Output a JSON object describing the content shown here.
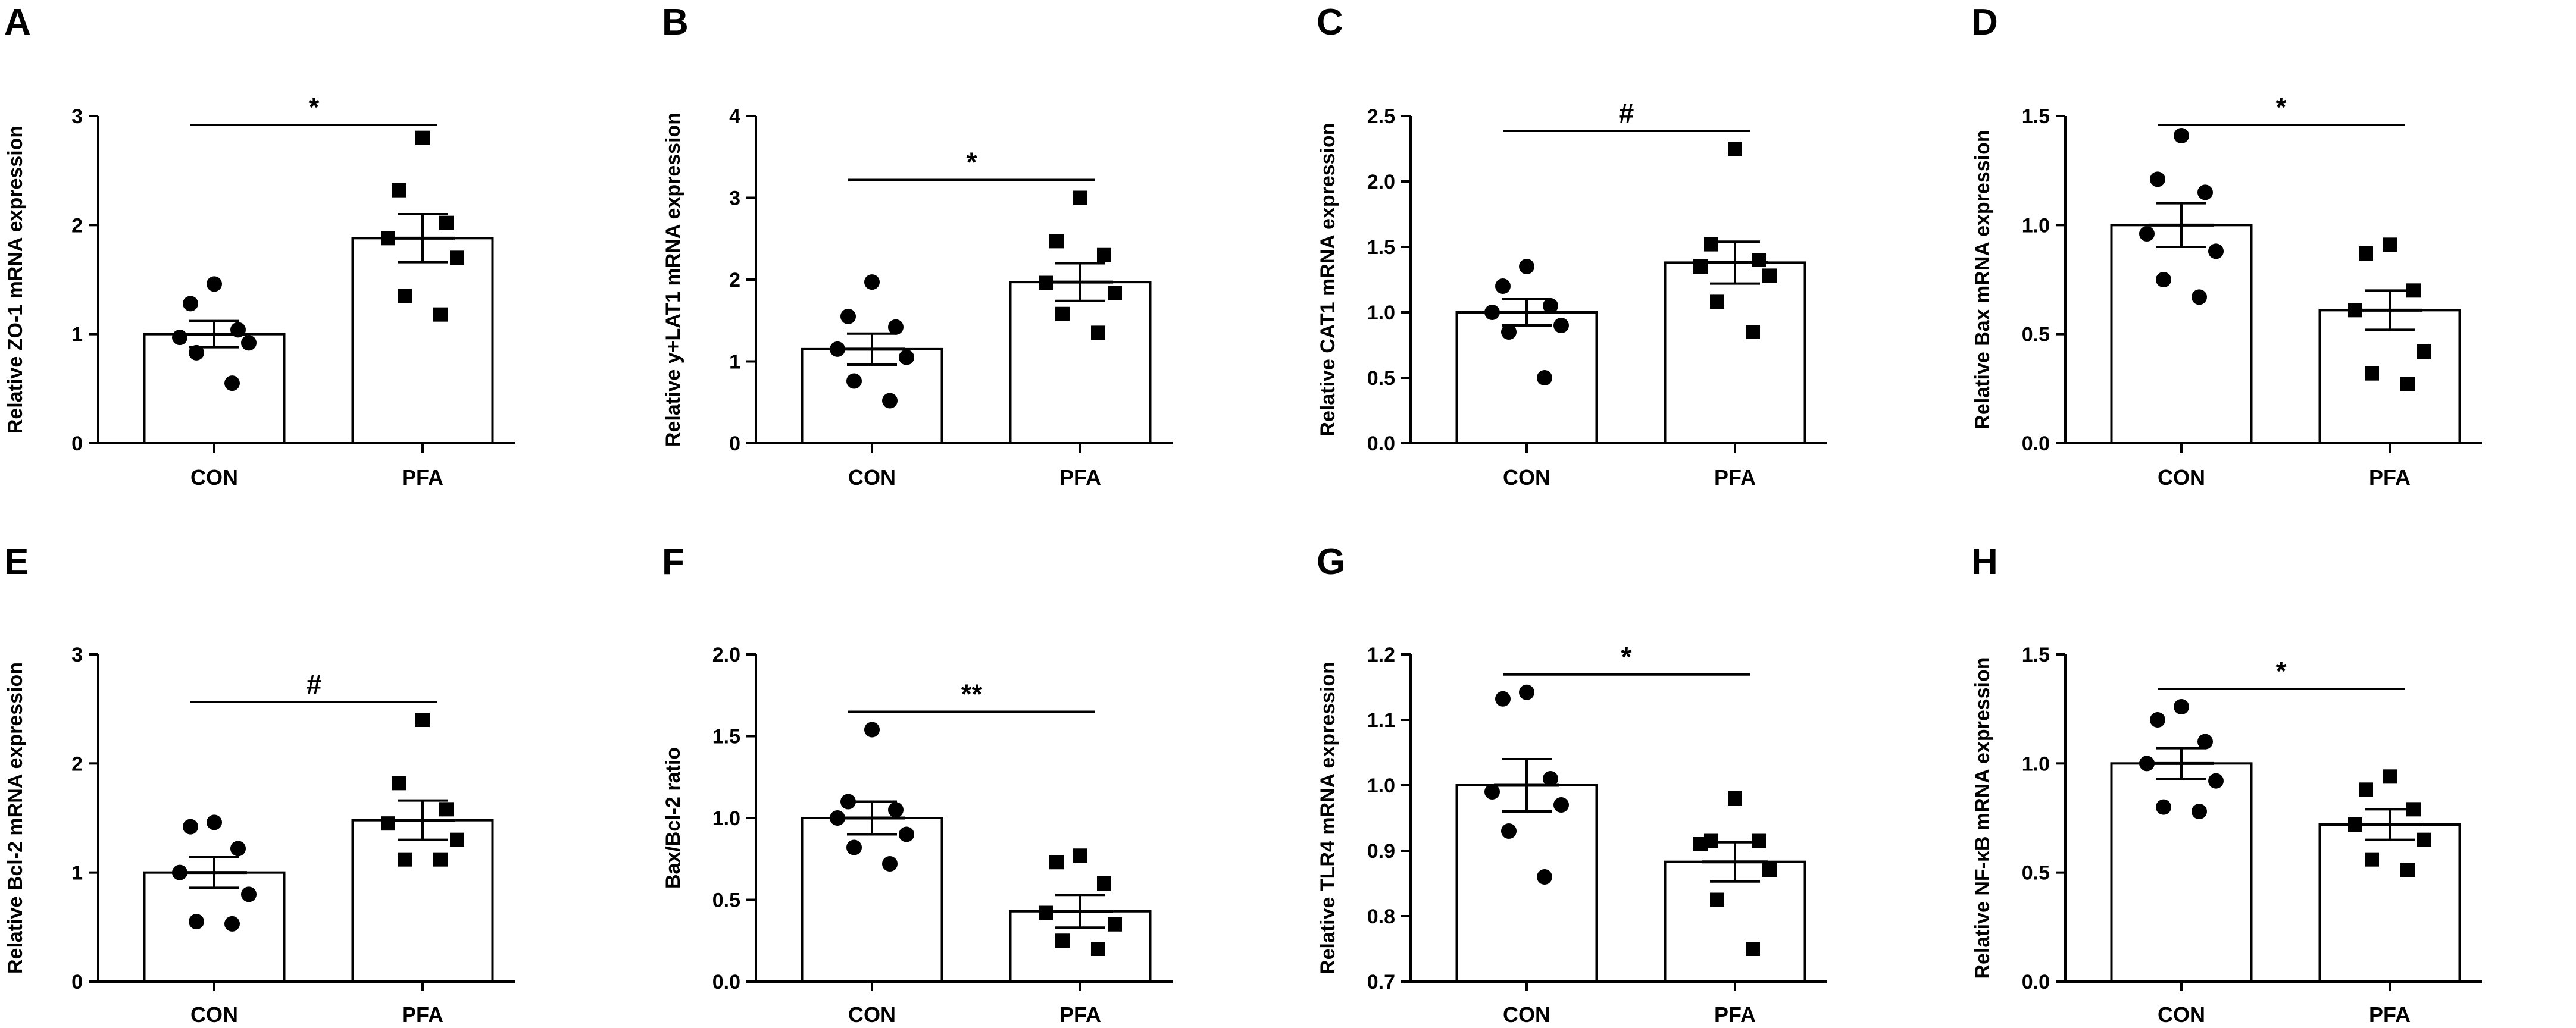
{
  "chart_data": [
    {
      "type": "bar",
      "panel": "A",
      "ylabel": "Relative ZO-1 mRNA expression",
      "ylim": [
        0,
        3
      ],
      "yticks": [
        "0",
        "1",
        "2",
        "3"
      ],
      "categories": [
        "CON",
        "PFA"
      ],
      "means": [
        1.0,
        1.88
      ],
      "sem": [
        0.12,
        0.22
      ],
      "points": [
        [
          1.46,
          1.28,
          1.04,
          0.97,
          0.92,
          0.83,
          0.55
        ],
        [
          2.8,
          2.32,
          2.02,
          1.88,
          1.7,
          1.35,
          1.18
        ]
      ],
      "significance": "*"
    },
    {
      "type": "bar",
      "panel": "B",
      "ylabel": "Relative y+LAT1 mRNA expression",
      "ylim": [
        0,
        4
      ],
      "yticks": [
        "0",
        "1",
        "2",
        "3",
        "4"
      ],
      "categories": [
        "CON",
        "PFA"
      ],
      "means": [
        1.15,
        1.97
      ],
      "sem": [
        0.19,
        0.23
      ],
      "points": [
        [
          1.97,
          1.55,
          1.42,
          1.15,
          1.05,
          0.76,
          0.52
        ],
        [
          3.0,
          2.47,
          2.3,
          1.96,
          1.84,
          1.58,
          1.35
        ]
      ],
      "significance": "*"
    },
    {
      "type": "bar",
      "panel": "C",
      "ylabel": "Relative CAT1 mRNA expression",
      "ylim": [
        0,
        2.5
      ],
      "yticks": [
        "0.0",
        "0.5",
        "1.0",
        "1.5",
        "2.0",
        "2.5"
      ],
      "categories": [
        "CON",
        "PFA"
      ],
      "means": [
        1.0,
        1.38
      ],
      "sem": [
        0.1,
        0.16
      ],
      "points": [
        [
          1.35,
          1.2,
          1.05,
          1.0,
          0.9,
          0.85,
          0.5
        ],
        [
          2.25,
          1.52,
          1.4,
          1.35,
          1.28,
          1.08,
          0.85
        ]
      ],
      "significance": "#"
    },
    {
      "type": "bar",
      "panel": "D",
      "ylabel": "Relative Bax mRNA expression",
      "ylim": [
        0,
        1.5
      ],
      "yticks": [
        "0.0",
        "0.5",
        "1.0",
        "1.5"
      ],
      "categories": [
        "CON",
        "PFA"
      ],
      "means": [
        1.0,
        0.61
      ],
      "sem": [
        0.1,
        0.09
      ],
      "points": [
        [
          1.41,
          1.21,
          1.15,
          0.96,
          0.88,
          0.75,
          0.67
        ],
        [
          0.91,
          0.87,
          0.7,
          0.61,
          0.42,
          0.32,
          0.27
        ]
      ],
      "significance": "*"
    },
    {
      "type": "bar",
      "panel": "E",
      "ylabel": "Relative Bcl-2 mRNA expression",
      "ylim": [
        0,
        3
      ],
      "yticks": [
        "0",
        "1",
        "2",
        "3"
      ],
      "categories": [
        "CON",
        "PFA"
      ],
      "means": [
        1.0,
        1.48
      ],
      "sem": [
        0.14,
        0.18
      ],
      "points": [
        [
          1.46,
          1.42,
          1.22,
          1.0,
          0.8,
          0.55,
          0.53
        ],
        [
          2.4,
          1.82,
          1.58,
          1.45,
          1.3,
          1.12,
          1.12
        ]
      ],
      "significance": "#"
    },
    {
      "type": "bar",
      "panel": "F",
      "ylabel": "Bax/Bcl-2 ratio",
      "ylim": [
        0,
        2.0
      ],
      "yticks": [
        "0.0",
        "0.5",
        "1.0",
        "1.5",
        "2.0"
      ],
      "categories": [
        "CON",
        "PFA"
      ],
      "means": [
        1.0,
        0.43
      ],
      "sem": [
        0.1,
        0.1
      ],
      "points": [
        [
          1.54,
          1.1,
          1.05,
          1.0,
          0.9,
          0.82,
          0.72
        ],
        [
          0.77,
          0.73,
          0.6,
          0.42,
          0.35,
          0.25,
          0.2
        ]
      ],
      "significance": "**"
    },
    {
      "type": "bar",
      "panel": "G",
      "ylabel": "Relative TLR4 mRNA expression",
      "ylim": [
        0.7,
        1.2
      ],
      "yticks": [
        "0.7",
        "0.8",
        "0.9",
        "1.0",
        "1.1",
        "1.2"
      ],
      "categories": [
        "CON",
        "PFA"
      ],
      "means": [
        1.0,
        0.883
      ],
      "sem": [
        0.04,
        0.03
      ],
      "points": [
        [
          1.142,
          1.132,
          1.01,
          0.99,
          0.97,
          0.93,
          0.86
        ],
        [
          0.98,
          0.915,
          0.915,
          0.91,
          0.87,
          0.825,
          0.75
        ]
      ],
      "significance": "*"
    },
    {
      "type": "bar",
      "panel": "H",
      "ylabel": "Relative NF-κB mRNA expression",
      "ylim": [
        0,
        1.5
      ],
      "yticks": [
        "0.0",
        "0.5",
        "1.0",
        "1.5"
      ],
      "categories": [
        "CON",
        "PFA"
      ],
      "means": [
        1.0,
        0.72
      ],
      "sem": [
        0.07,
        0.07
      ],
      "points": [
        [
          1.26,
          1.2,
          1.1,
          1.0,
          0.92,
          0.8,
          0.78
        ],
        [
          0.94,
          0.88,
          0.79,
          0.72,
          0.65,
          0.56,
          0.51
        ]
      ],
      "significance": "*"
    }
  ]
}
